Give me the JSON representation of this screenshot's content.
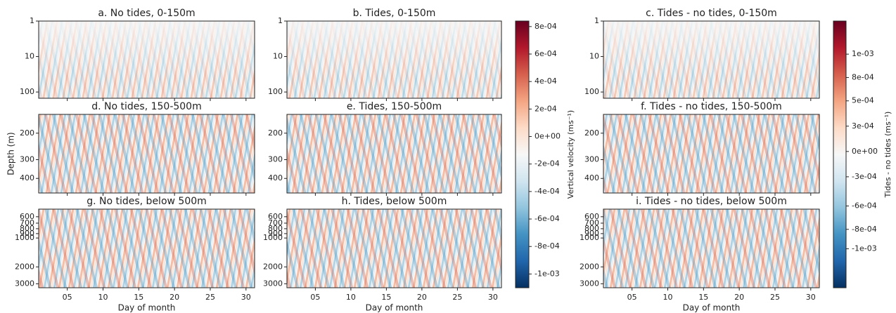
{
  "chart_data": [
    {
      "type": "heatmap",
      "title": "a. No tides, 0-150m",
      "xlim": [
        1,
        31.2
      ],
      "xticks": [
        5,
        10,
        15,
        20,
        25,
        30
      ],
      "ylim": [
        1,
        150
      ],
      "yticks": [
        1,
        10,
        100
      ],
      "y_scale": "log",
      "y_inverted": true
    },
    {
      "type": "heatmap",
      "title": "b. Tides, 0-150m",
      "xlim": [
        1,
        31.2
      ],
      "xticks": [
        5,
        10,
        15,
        20,
        25,
        30
      ],
      "ylim": [
        1,
        150
      ],
      "yticks": [
        1,
        10,
        100
      ],
      "y_scale": "log",
      "y_inverted": true
    },
    {
      "type": "heatmap",
      "title": "c. Tides - no tides, 0-150m",
      "xlim": [
        1,
        31.2
      ],
      "xticks": [
        5,
        10,
        15,
        20,
        25,
        30
      ],
      "ylim": [
        1,
        150
      ],
      "yticks": [
        1,
        10,
        100
      ],
      "y_scale": "log",
      "y_inverted": true
    },
    {
      "type": "heatmap",
      "title": "d. No tides, 150-500m",
      "y_label": "Depth (m)",
      "xlim": [
        1,
        31.2
      ],
      "xticks": [
        5,
        10,
        15,
        20,
        25,
        30
      ],
      "ylim": [
        150,
        500
      ],
      "yticks": [
        200,
        300,
        400
      ],
      "y_scale": "log",
      "y_inverted": true
    },
    {
      "type": "heatmap",
      "title": "e. Tides, 150-500m",
      "xlim": [
        1,
        31.2
      ],
      "xticks": [
        5,
        10,
        15,
        20,
        25,
        30
      ],
      "ylim": [
        150,
        500
      ],
      "yticks": [
        200,
        300,
        400
      ],
      "y_scale": "log",
      "y_inverted": true
    },
    {
      "type": "heatmap",
      "title": "f. Tides - no tides, 150-500m",
      "xlim": [
        1,
        31.2
      ],
      "xticks": [
        5,
        10,
        15,
        20,
        25,
        30
      ],
      "ylim": [
        150,
        500
      ],
      "yticks": [
        200,
        300,
        400
      ],
      "y_scale": "log",
      "y_inverted": true
    },
    {
      "type": "heatmap",
      "title": "g. No tides, below 500m",
      "x_label": "Day of month",
      "show_xtick_labels": true,
      "xlim": [
        1,
        31.2
      ],
      "xticks": [
        {
          "value": 5,
          "label": "05"
        },
        10,
        15,
        20,
        25,
        30
      ],
      "ylim": [
        500,
        3300
      ],
      "yticks": [
        600,
        700,
        800,
        900,
        1000,
        2000,
        3000
      ],
      "y_scale": "log",
      "y_inverted": true
    },
    {
      "type": "heatmap",
      "title": "h. Tides, below 500m",
      "x_label": "Day of month",
      "show_xtick_labels": true,
      "xlim": [
        1,
        31.2
      ],
      "xticks": [
        {
          "value": 5,
          "label": "05"
        },
        10,
        15,
        20,
        25,
        30
      ],
      "ylim": [
        500,
        3300
      ],
      "yticks": [
        600,
        700,
        800,
        900,
        1000,
        2000,
        3000
      ],
      "y_scale": "log",
      "y_inverted": true
    },
    {
      "type": "heatmap",
      "title": "i. Tides - no tides, below 500m",
      "x_label": "Day of month",
      "show_xtick_labels": true,
      "xlim": [
        1,
        31.2
      ],
      "xticks": [
        {
          "value": 5,
          "label": "05"
        },
        10,
        15,
        20,
        25,
        30
      ],
      "ylim": [
        500,
        3300
      ],
      "yticks": [
        600,
        700,
        800,
        900,
        1000,
        2000,
        3000
      ],
      "y_scale": "log",
      "y_inverted": true
    },
    {
      "type": "colorbar",
      "label": "Vertical velocity (ms⁻¹)",
      "ylim": [
        -0.0011,
        0.00084
      ],
      "yticks": [
        {
          "value": 0.0008,
          "label": "8e-04"
        },
        {
          "value": 0.0006,
          "label": "6e-04"
        },
        {
          "value": 0.0004,
          "label": "4e-04"
        },
        {
          "value": 0.0002,
          "label": "2e-04"
        },
        {
          "value": 0,
          "label": "0e+00"
        },
        {
          "value": -0.0002,
          "label": "-2e-04"
        },
        {
          "value": -0.0004,
          "label": "-4e-04"
        },
        {
          "value": -0.0006,
          "label": "-6e-04"
        },
        {
          "value": -0.0008,
          "label": "-8e-04"
        },
        {
          "value": -0.001,
          "label": "-1e-03"
        }
      ],
      "colors": [
        "#053061",
        "#2166ac",
        "#4393c3",
        "#92c5de",
        "#d1e5f0",
        "#f7f7f7",
        "#fddbc7",
        "#f4a582",
        "#d6604d",
        "#b2182b",
        "#67001f"
      ]
    },
    {
      "type": "colorbar",
      "label": "Tides - no tides (ms⁻¹)",
      "ylim": [
        -0.0014,
        0.00134
      ],
      "yticks": [
        {
          "value": 0.001,
          "label": "1e-03"
        },
        {
          "value": 0.00076,
          "label": "8e-04"
        },
        {
          "value": 0.00052,
          "label": "5e-04"
        },
        {
          "value": 0.00026,
          "label": "3e-04"
        },
        {
          "value": 0,
          "label": "0e+00"
        },
        {
          "value": -0.00026,
          "label": "-3e-04"
        },
        {
          "value": -0.00056,
          "label": "-6e-04"
        },
        {
          "value": -0.0008,
          "label": "-8e-04"
        },
        {
          "value": -0.001,
          "label": "-1e-03"
        }
      ],
      "colors": [
        "#053061",
        "#2166ac",
        "#4393c3",
        "#92c5de",
        "#d1e5f0",
        "#f7f7f7",
        "#fddbc7",
        "#f4a582",
        "#d6604d",
        "#b2182b",
        "#67001f"
      ]
    }
  ]
}
